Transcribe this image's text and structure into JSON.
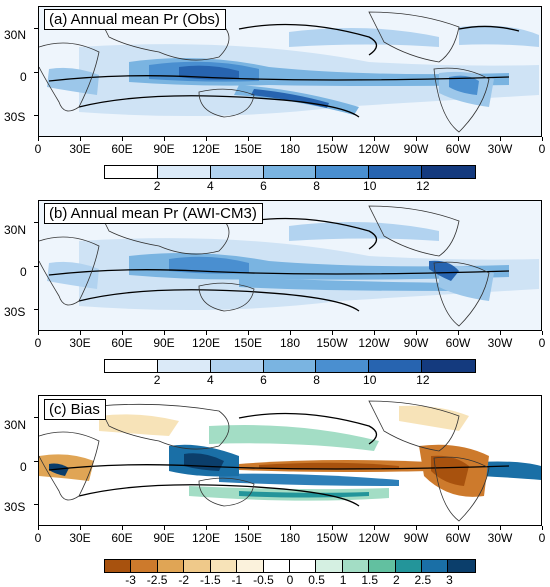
{
  "panels": [
    {
      "title": "(a) Annual mean Pr (Obs)",
      "type": "precip",
      "colorbar": {
        "colors": [
          "#ffffff",
          "#dbeaf8",
          "#b2d3f0",
          "#7ab4e1",
          "#4a8fd0",
          "#2764b0",
          "#143a7e"
        ],
        "labels": [
          "2",
          "4",
          "6",
          "8",
          "10",
          "12"
        ]
      }
    },
    {
      "title": "(b) Annual mean Pr (AWI-CM3)",
      "type": "precip",
      "colorbar": {
        "colors": [
          "#ffffff",
          "#dbeaf8",
          "#b2d3f0",
          "#7ab4e1",
          "#4a8fd0",
          "#2764b0",
          "#143a7e"
        ],
        "labels": [
          "2",
          "4",
          "6",
          "8",
          "10",
          "12"
        ]
      }
    },
    {
      "title": "(c) Bias",
      "type": "bias",
      "colorbar": {
        "colors": [
          "#a8520e",
          "#cd7a2c",
          "#e0a555",
          "#efc98a",
          "#f7e3b8",
          "#fbf2dc",
          "#ffffff",
          "#ffffff",
          "#d5f0e2",
          "#a3ddc5",
          "#62c0a0",
          "#23959a",
          "#1a6fa6",
          "#0b3e6b"
        ],
        "labels": [
          "-3",
          "-2.5",
          "-2",
          "-1.5",
          "-1",
          "-0.5",
          "0",
          "0.5",
          "1",
          "1.5",
          "2",
          "2.5",
          "3"
        ]
      }
    }
  ],
  "lat_labels": [
    "30N",
    "0",
    "30S"
  ],
  "lon_labels": [
    "0",
    "30E",
    "60E",
    "90E",
    "120E",
    "150E",
    "180",
    "150W",
    "120W",
    "90W",
    "60W",
    "30W",
    "0"
  ]
}
